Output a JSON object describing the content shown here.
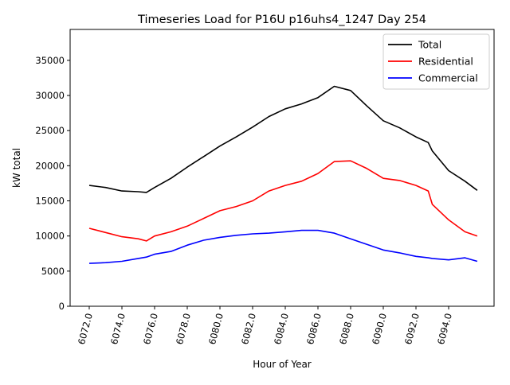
{
  "chart_data": {
    "type": "line",
    "title": "Timeseries Load for P16U p16uhs4_1247  Day 254",
    "xlabel": "Hour of Year",
    "ylabel": "kW total",
    "xlim": [
      6070.83,
      6096.78
    ],
    "ylim": [
      0,
      39400
    ],
    "xticks": [
      6072,
      6074,
      6076,
      6078,
      6080,
      6082,
      6084,
      6086,
      6088,
      6090,
      6092,
      6094
    ],
    "xtick_labels": [
      "6072.0",
      "6074.0",
      "6076.0",
      "6078.0",
      "6080.0",
      "6082.0",
      "6084.0",
      "6086.0",
      "6088.0",
      "6090.0",
      "6092.0",
      "6094.0"
    ],
    "yticks": [
      0,
      5000,
      10000,
      15000,
      20000,
      25000,
      30000,
      35000
    ],
    "ytick_labels": [
      "0",
      "5000",
      "10000",
      "15000",
      "20000",
      "25000",
      "30000",
      "35000"
    ],
    "grid": false,
    "legend_position": "top-right",
    "x": [
      6072,
      6073,
      6074,
      6075,
      6075.5,
      6076,
      6077,
      6078,
      6079,
      6080,
      6081,
      6082,
      6083,
      6084,
      6085,
      6086,
      6087,
      6088,
      6089,
      6090,
      6091,
      6092,
      6092.75,
      6093,
      6094,
      6095,
      6095.75
    ],
    "series": [
      {
        "name": "Total",
        "color": "#000000",
        "values": [
          17200,
          16900,
          16400,
          16300,
          16200,
          16900,
          18200,
          19800,
          21300,
          22800,
          24100,
          25500,
          27000,
          28100,
          28800,
          29700,
          31300,
          30700,
          28500,
          26400,
          25400,
          24100,
          23300,
          22100,
          19300,
          17800,
          16500
        ]
      },
      {
        "name": "Residential",
        "color": "#ff0000",
        "values": [
          11100,
          10500,
          9900,
          9600,
          9300,
          10000,
          10600,
          11400,
          12500,
          13600,
          14200,
          15000,
          16400,
          17200,
          17800,
          18900,
          20600,
          20700,
          19600,
          18200,
          17900,
          17200,
          16400,
          14500,
          12300,
          10600,
          10000
        ]
      },
      {
        "name": "Commercial",
        "color": "#0000ff",
        "values": [
          6100,
          6200,
          6400,
          6800,
          7000,
          7400,
          7800,
          8700,
          9400,
          9800,
          10100,
          10300,
          10400,
          10600,
          10800,
          10800,
          10400,
          9600,
          8800,
          8000,
          7600,
          7100,
          6900,
          6800,
          6600,
          6900,
          6400
        ]
      }
    ]
  }
}
